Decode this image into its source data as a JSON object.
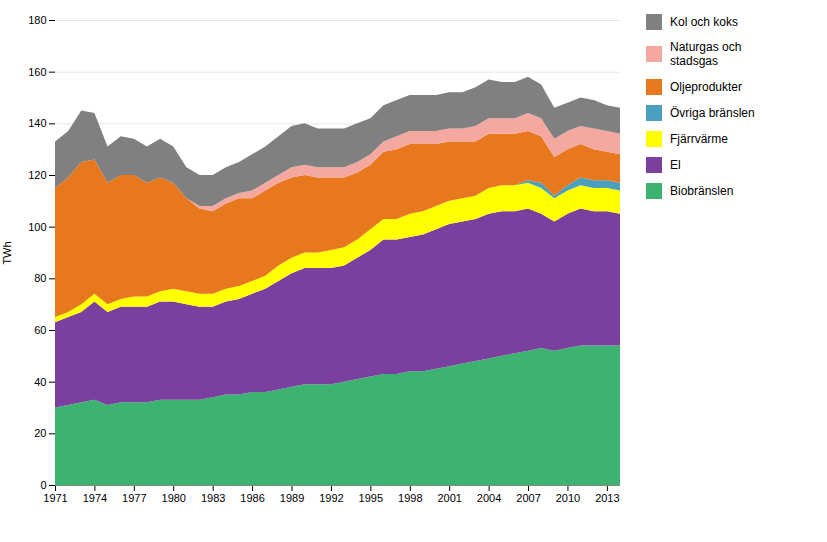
{
  "chart_data": {
    "type": "area",
    "stacked": true,
    "ylabel": "TWh",
    "x": [
      1971,
      1972,
      1973,
      1974,
      1975,
      1976,
      1977,
      1978,
      1979,
      1980,
      1981,
      1982,
      1983,
      1984,
      1985,
      1986,
      1987,
      1988,
      1989,
      1990,
      1991,
      1992,
      1993,
      1994,
      1995,
      1996,
      1997,
      1998,
      1999,
      2000,
      2001,
      2002,
      2003,
      2004,
      2005,
      2006,
      2007,
      2008,
      2009,
      2010,
      2011,
      2012,
      2013,
      2014
    ],
    "series": [
      {
        "name": "Biobränslen",
        "color": "#3cb371",
        "values": [
          30,
          31,
          32,
          33,
          31,
          32,
          32,
          32,
          33,
          33,
          33,
          33,
          34,
          35,
          35,
          36,
          36,
          37,
          38,
          39,
          39,
          39,
          40,
          41,
          42,
          43,
          43,
          44,
          44,
          45,
          46,
          47,
          48,
          49,
          50,
          51,
          52,
          53,
          52,
          53,
          54,
          54,
          54,
          54
        ]
      },
      {
        "name": "El",
        "color": "#7b3fa0",
        "values": [
          33,
          34,
          35,
          38,
          36,
          37,
          37,
          37,
          38,
          38,
          37,
          36,
          35,
          36,
          37,
          38,
          40,
          42,
          44,
          45,
          45,
          45,
          45,
          47,
          49,
          52,
          52,
          52,
          53,
          54,
          55,
          55,
          55,
          56,
          56,
          55,
          55,
          52,
          50,
          52,
          53,
          52,
          52,
          51
        ]
      },
      {
        "name": "Fjärrvärme",
        "color": "#ffff00",
        "values": [
          2,
          2,
          3,
          3,
          3,
          3,
          4,
          4,
          4,
          5,
          5,
          5,
          5,
          5,
          5,
          5,
          5,
          6,
          6,
          6,
          6,
          7,
          7,
          7,
          8,
          8,
          8,
          9,
          9,
          9,
          9,
          9,
          9,
          10,
          10,
          10,
          10,
          10,
          9,
          9,
          9,
          9,
          9,
          9
        ]
      },
      {
        "name": "Övriga bränslen",
        "color": "#4a9ebe",
        "values": [
          0,
          0,
          0,
          0,
          0,
          0,
          0,
          0,
          0,
          0,
          0,
          0,
          0,
          0,
          0,
          0,
          0,
          0,
          0,
          0,
          0,
          0,
          0,
          0,
          0,
          0,
          0,
          0,
          0,
          0,
          0,
          0,
          0,
          0,
          0,
          0,
          1,
          2,
          1,
          2,
          3,
          3,
          3,
          3
        ]
      },
      {
        "name": "Oljeprodukter",
        "color": "#e8781e",
        "values": [
          50,
          52,
          55,
          52,
          47,
          48,
          47,
          44,
          44,
          41,
          36,
          33,
          32,
          33,
          34,
          32,
          33,
          32,
          31,
          30,
          29,
          28,
          27,
          26,
          25,
          26,
          27,
          27,
          26,
          24,
          23,
          22,
          21,
          21,
          20,
          20,
          19,
          18,
          15,
          14,
          13,
          12,
          11,
          11
        ]
      },
      {
        "name": "Naturgas och\nstadsgas",
        "color": "#f4a8a0",
        "values": [
          0,
          0,
          0,
          0,
          0,
          0,
          0,
          0,
          0,
          0,
          0,
          1,
          2,
          2,
          2,
          3,
          3,
          3,
          4,
          4,
          4,
          4,
          4,
          4,
          4,
          4,
          5,
          5,
          5,
          5,
          5,
          5,
          6,
          6,
          6,
          6,
          7,
          7,
          7,
          7,
          7,
          8,
          8,
          8
        ]
      },
      {
        "name": "Kol och koks",
        "color": "#808080",
        "values": [
          18,
          18,
          20,
          18,
          14,
          15,
          14,
          14,
          15,
          14,
          12,
          12,
          12,
          12,
          12,
          14,
          14,
          15,
          16,
          16,
          15,
          15,
          15,
          15,
          14,
          14,
          14,
          14,
          14,
          14,
          14,
          14,
          15,
          15,
          14,
          14,
          14,
          13,
          12,
          11,
          11,
          11,
          10,
          10
        ]
      }
    ],
    "xlim": [
      1971,
      2014
    ],
    "xticks": [
      1971,
      1974,
      1977,
      1980,
      1983,
      1986,
      1989,
      1992,
      1995,
      1998,
      2001,
      2004,
      2007,
      2010,
      2013
    ],
    "ylim": [
      0,
      180
    ],
    "yticks": [
      0,
      20,
      40,
      60,
      80,
      100,
      120,
      140,
      160,
      180
    ],
    "grid": "y",
    "legend": "right"
  }
}
